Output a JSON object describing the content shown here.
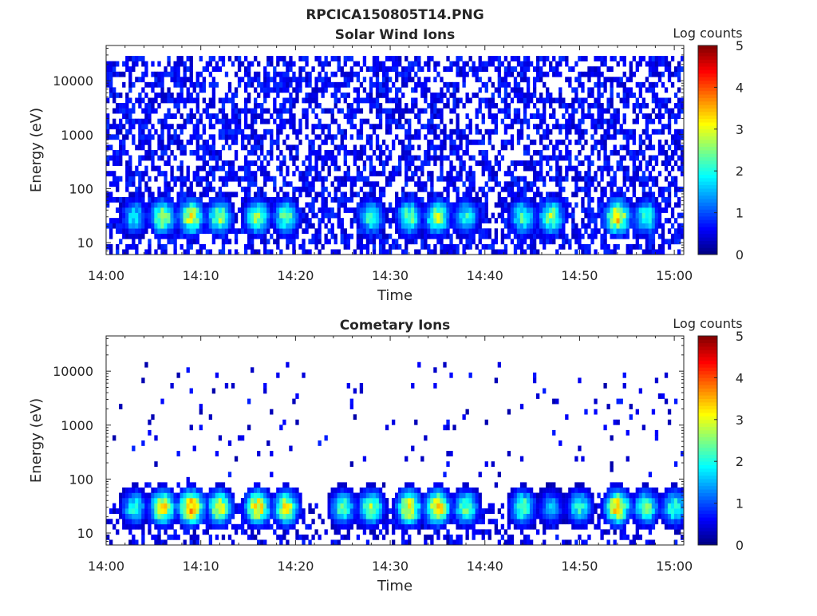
{
  "figure": {
    "filename": "RPCICA150805T14.PNG"
  },
  "chart_data": [
    {
      "type": "heatmap",
      "title": "Solar Wind Ions",
      "xlabel": "Time",
      "ylabel": "Energy (eV)",
      "x_ticks": [
        "14:00",
        "14:10",
        "14:20",
        "14:30",
        "14:40",
        "14:50",
        "15:00"
      ],
      "x_range": [
        "14:00",
        "15:01"
      ],
      "y_scale": "log",
      "y_ticks": [
        10,
        100,
        1000,
        10000
      ],
      "y_range": [
        6,
        45000
      ],
      "colorbar": {
        "label": "Log counts",
        "range": [
          0,
          5
        ],
        "ticks": [
          0,
          1,
          2,
          3,
          4,
          5
        ],
        "colormap": "jet"
      },
      "grid": false,
      "description_of_structure": {
        "background_level_log_counts": 0.3,
        "background_energy_range_eV": [
          6,
          30000
        ],
        "peak_energy_eV": 30,
        "peaks": [
          {
            "time": "14:03",
            "log_counts": 2.0
          },
          {
            "time": "14:06",
            "log_counts": 3.0
          },
          {
            "time": "14:09",
            "log_counts": 3.2
          },
          {
            "time": "14:12",
            "log_counts": 2.8
          },
          {
            "time": "14:16",
            "log_counts": 2.8
          },
          {
            "time": "14:19",
            "log_counts": 2.6
          },
          {
            "time": "14:28",
            "log_counts": 2.4
          },
          {
            "time": "14:32",
            "log_counts": 2.6
          },
          {
            "time": "14:35",
            "log_counts": 3.0
          },
          {
            "time": "14:38",
            "log_counts": 2.2
          },
          {
            "time": "14:44",
            "log_counts": 2.4
          },
          {
            "time": "14:47",
            "log_counts": 2.8
          },
          {
            "time": "14:54",
            "log_counts": 3.6
          },
          {
            "time": "14:57",
            "log_counts": 2.4
          }
        ]
      }
    },
    {
      "type": "heatmap",
      "title": "Cometary Ions",
      "xlabel": "Time",
      "ylabel": "Energy (eV)",
      "x_ticks": [
        "14:00",
        "14:10",
        "14:20",
        "14:30",
        "14:40",
        "14:50",
        "15:00"
      ],
      "x_range": [
        "14:00",
        "15:01"
      ],
      "y_scale": "log",
      "y_ticks": [
        10,
        100,
        1000,
        10000
      ],
      "y_range": [
        6,
        45000
      ],
      "colorbar": {
        "label": "Log counts",
        "range": [
          0,
          5
        ],
        "ticks": [
          0,
          1,
          2,
          3,
          4,
          5
        ],
        "colormap": "jet"
      },
      "grid": false,
      "description_of_structure": {
        "background_level_log_counts": 0.2,
        "background_energy_range_eV": [
          6,
          15000
        ],
        "peak_energy_eV": 30,
        "peaks": [
          {
            "time": "14:03",
            "log_counts": 2.2
          },
          {
            "time": "14:06",
            "log_counts": 3.4
          },
          {
            "time": "14:09",
            "log_counts": 4.0
          },
          {
            "time": "14:12",
            "log_counts": 3.2
          },
          {
            "time": "14:16",
            "log_counts": 3.6
          },
          {
            "time": "14:19",
            "log_counts": 3.2
          },
          {
            "time": "14:25",
            "log_counts": 2.4
          },
          {
            "time": "14:28",
            "log_counts": 2.8
          },
          {
            "time": "14:32",
            "log_counts": 3.4
          },
          {
            "time": "14:35",
            "log_counts": 3.6
          },
          {
            "time": "14:38",
            "log_counts": 2.6
          },
          {
            "time": "14:44",
            "log_counts": 2.6
          },
          {
            "time": "14:47",
            "log_counts": 1.6
          },
          {
            "time": "14:50",
            "log_counts": 2.2
          },
          {
            "time": "14:54",
            "log_counts": 3.6
          },
          {
            "time": "14:57",
            "log_counts": 2.6
          },
          {
            "time": "15:00",
            "log_counts": 2.4
          }
        ]
      }
    }
  ]
}
